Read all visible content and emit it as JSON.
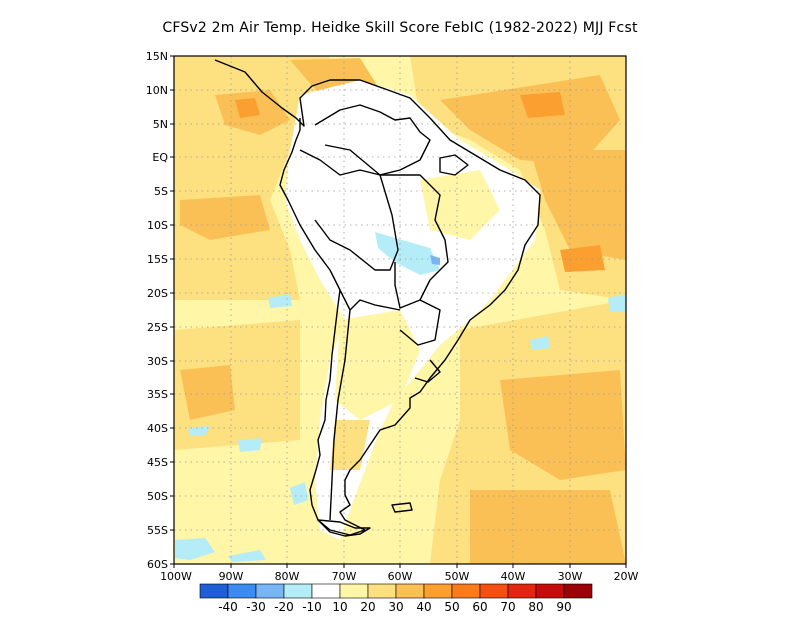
{
  "title": "CFSv2  2m Air Temp. Heidke Skill Score FebIC (1982-2022) MJJ Fcst",
  "map": {
    "region": "South America",
    "projection": "lat-lon",
    "lon_range": [
      -100,
      -20
    ],
    "lat_range": [
      -60,
      15
    ],
    "lat_tick_labels": [
      "15N",
      "10N",
      "5N",
      "EQ",
      "5S",
      "10S",
      "15S",
      "20S",
      "25S",
      "30S",
      "35S",
      "40S",
      "45S",
      "50S",
      "55S",
      "60S"
    ],
    "lon_tick_labels": [
      "100W",
      "90W",
      "80W",
      "70W",
      "60W",
      "50W",
      "40W",
      "30W",
      "20W"
    ],
    "grid_dotted": true
  },
  "colorbar": {
    "colors": [
      "#1f5fd6",
      "#3c8cf0",
      "#78b5f5",
      "#b4ecf8",
      "#ffffff",
      "#fff6a8",
      "#fde080",
      "#fbc055",
      "#fb9f30",
      "#f97c1c",
      "#f45012",
      "#e2260f",
      "#c60c0a",
      "#9a0007"
    ],
    "labels": [
      "-40",
      "-30",
      "-20",
      "-10",
      "10",
      "20",
      "30",
      "40",
      "50",
      "60",
      "70",
      "80",
      "90"
    ]
  }
}
